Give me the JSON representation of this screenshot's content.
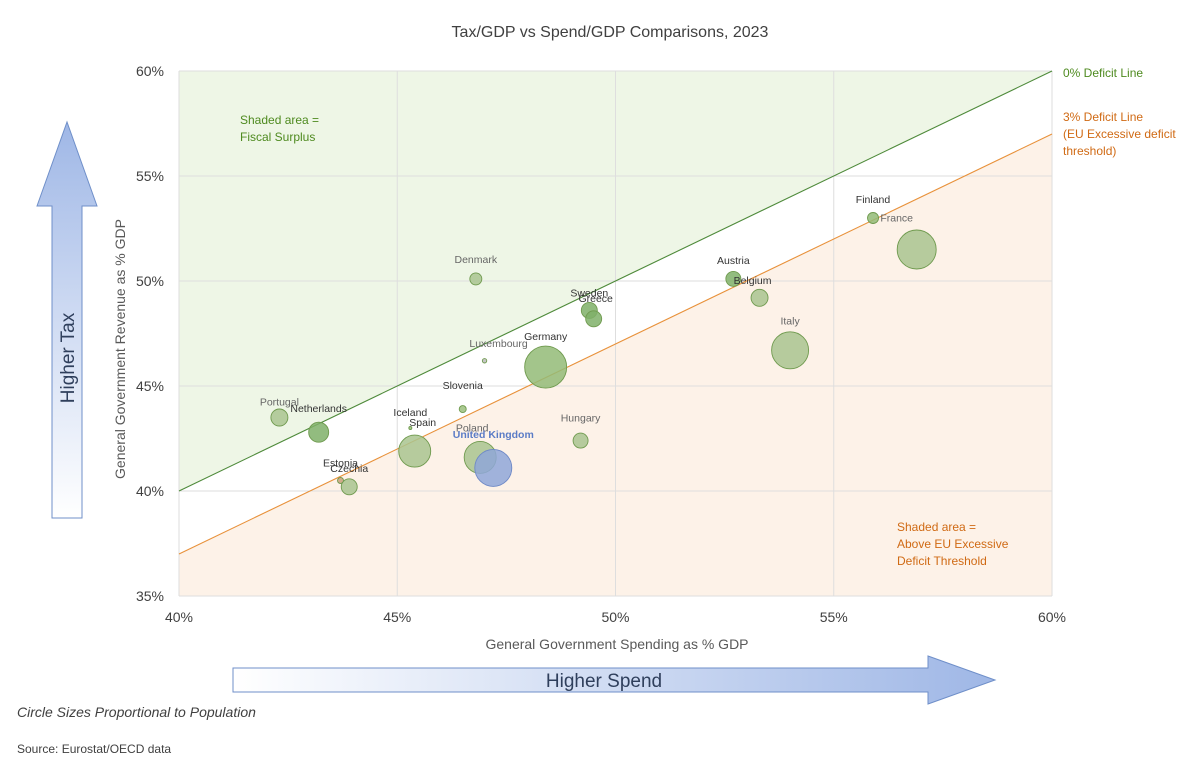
{
  "chart_data": {
    "type": "scatter",
    "title": "Tax/GDP vs Spend/GDP Comparisons, 2023",
    "xlabel": "General Government Spending as % GDP",
    "ylabel": "General Government Revenue as % GDP",
    "xlim": [
      40,
      60
    ],
    "ylim": [
      35,
      60
    ],
    "x_ticks": [
      "40%",
      "45%",
      "50%",
      "55%",
      "60%"
    ],
    "y_ticks": [
      "35%",
      "40%",
      "45%",
      "50%",
      "55%",
      "60%"
    ],
    "grid": true,
    "points": [
      {
        "label": "Portugal",
        "x": 42.3,
        "y": 43.5,
        "r": 8.5,
        "color": "#a9c48f"
      },
      {
        "label": "Netherlands",
        "x": 43.2,
        "y": 42.8,
        "r": 10,
        "color": "#7fb069"
      },
      {
        "label": "Estonia",
        "x": 43.7,
        "y": 40.5,
        "r": 3,
        "color": "#c9a07a"
      },
      {
        "label": "Czechia",
        "x": 43.9,
        "y": 40.2,
        "r": 8,
        "color": "#a9c48f"
      },
      {
        "label": "Iceland",
        "x": 45.3,
        "y": 43.0,
        "r": 1.5,
        "color": "#9bbf7e"
      },
      {
        "label": "Spain",
        "x": 45.4,
        "y": 41.9,
        "r": 16,
        "color": "#a9c48f"
      },
      {
        "label": "Denmark",
        "x": 46.8,
        "y": 50.1,
        "r": 6,
        "color": "#a9c48f"
      },
      {
        "label": "Slovenia",
        "x": 46.5,
        "y": 43.9,
        "r": 3.5,
        "color": "#9bbf7e"
      },
      {
        "label": "Luxembourg",
        "x": 47.0,
        "y": 46.2,
        "r": 2.2,
        "color": "#bcbcbc"
      },
      {
        "label": "Poland",
        "x": 46.9,
        "y": 41.6,
        "r": 16,
        "color": "#a9c48f"
      },
      {
        "label": "United Kingdom",
        "x": 47.2,
        "y": 41.1,
        "r": 18.5,
        "color": "#8fa7d8"
      },
      {
        "label": "Germany",
        "x": 48.4,
        "y": 45.9,
        "r": 21,
        "color": "#93bb77"
      },
      {
        "label": "Sweden",
        "x": 49.4,
        "y": 48.6,
        "r": 8,
        "color": "#7fb069"
      },
      {
        "label": "Greece",
        "x": 49.5,
        "y": 48.2,
        "r": 8,
        "color": "#7fb069"
      },
      {
        "label": "Hungary",
        "x": 49.2,
        "y": 42.4,
        "r": 7.5,
        "color": "#a9c48f"
      },
      {
        "label": "Austria",
        "x": 52.7,
        "y": 50.1,
        "r": 7.5,
        "color": "#7fb069"
      },
      {
        "label": "Belgium",
        "x": 53.3,
        "y": 49.2,
        "r": 8.5,
        "color": "#a9c48f"
      },
      {
        "label": "Italy",
        "x": 54.0,
        "y": 46.7,
        "r": 18.5,
        "color": "#a9c48f"
      },
      {
        "label": "Finland",
        "x": 55.9,
        "y": 53.0,
        "r": 5.5,
        "color": "#93bb77"
      },
      {
        "label": "France",
        "x": 56.9,
        "y": 51.5,
        "r": 19.5,
        "color": "#a9c48f"
      }
    ],
    "lines": [
      {
        "name": "0% Deficit Line",
        "offset": 0,
        "color": "#4e8a3a"
      },
      {
        "name": "3% Deficit Line",
        "offset": -3,
        "color": "#e8913a"
      }
    ],
    "line_notes": {
      "zero": [
        "0% Deficit Line"
      ],
      "three": [
        "3% Deficit Line",
        "(EU Excessive deficit",
        "threshold)"
      ]
    },
    "annotations": {
      "surplus": [
        "Shaded area =",
        "Fiscal Surplus"
      ],
      "excessive": [
        "Shaded area =",
        "Above EU Excessive",
        "Deficit Threshold"
      ],
      "higher_tax": "Higher Tax",
      "higher_spend": "Higher Spend"
    },
    "colors": {
      "surplus_fill": "#eef6e6",
      "excessive_fill": "#fdf2e8",
      "grid": "#dedede",
      "green_text": "#4e8a1f",
      "orange_text": "#d06a14",
      "uk_label": "#5b7cc6"
    }
  },
  "footer": {
    "note": "Circle Sizes Proportional to Population",
    "source": "Source: Eurostat/OECD data"
  }
}
